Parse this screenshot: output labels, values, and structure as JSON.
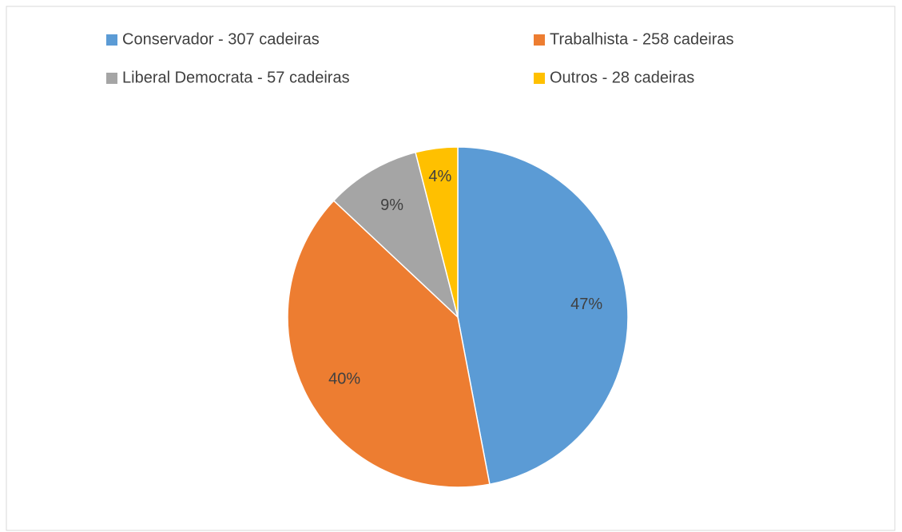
{
  "chart_data": {
    "type": "pie",
    "categories": [
      "Conservador - 307 cadeiras",
      "Trabalhista - 258 cadeiras",
      "Liberal Democrata - 57 cadeiras",
      "Outros - 28 cadeiras"
    ],
    "values": [
      47,
      40,
      9,
      4
    ],
    "value_labels": [
      "47%",
      "40%",
      "9%",
      "4%"
    ],
    "colors": [
      "#5b9bd5",
      "#ed7d31",
      "#a5a5a5",
      "#ffc000"
    ],
    "legend": "top"
  }
}
